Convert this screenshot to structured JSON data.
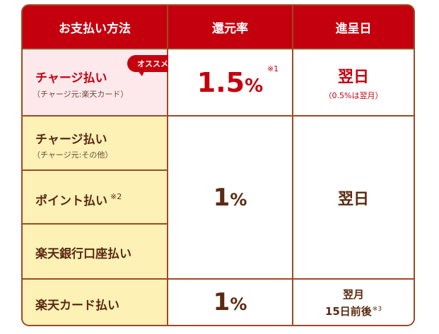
{
  "headers": {
    "method": "お支払い方法",
    "rate": "還元率",
    "grant": "進呈日"
  },
  "rows": {
    "charge_rakuten": {
      "label": "チャージ払い",
      "sub": "（チャージ元:楽天カード）",
      "badge": "オススメ",
      "rate_value": "1.5",
      "rate_unit": "%",
      "rate_note": "※1",
      "grant_main": "翌日",
      "grant_sub": "（0.5%は翌月）"
    },
    "charge_other": {
      "label": "チャージ払い",
      "sub": "（チャージ元:その他）"
    },
    "point": {
      "label": "ポイント払い",
      "note": "※2"
    },
    "bank": {
      "label": "楽天銀行口座払い"
    },
    "group_rate": {
      "value": "1",
      "unit": "%"
    },
    "group_grant": {
      "text": "翌日"
    },
    "card": {
      "label": "楽天カード払い",
      "rate_value": "1",
      "rate_unit": "%",
      "grant_line1": "翌月",
      "grant_line2": "15日前後",
      "grant_note": "※3"
    }
  },
  "colors": {
    "header_bg": "#c4000e",
    "border": "#9c4a24",
    "pink_row": "#fde8ec",
    "yellow_row": "#fdf1b6",
    "text_brown": "#5b2a12",
    "accent_red": "#c4000e"
  }
}
